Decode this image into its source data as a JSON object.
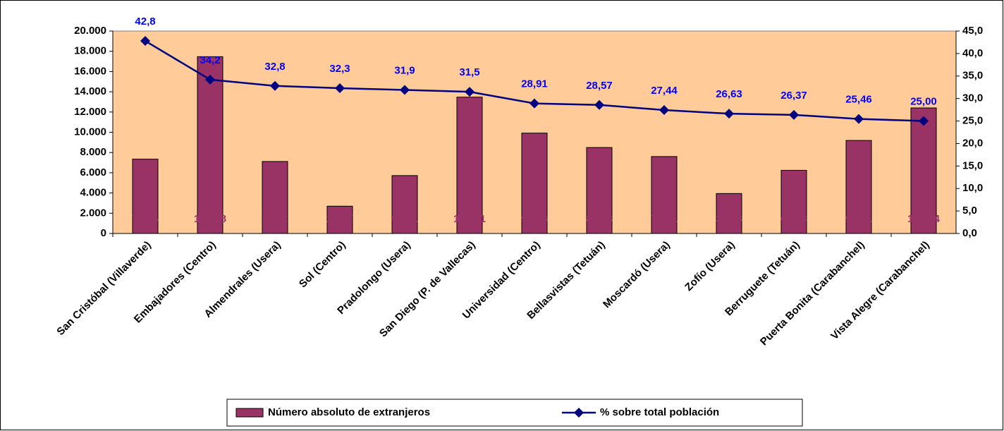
{
  "chart_data": {
    "type": "bar",
    "categories": [
      "San Cristóbal (Villaverde)",
      "Embajadores (Centro)",
      "Almendrales (Usera)",
      "Sol (Centro)",
      "Pradolongo (Usera)",
      "San Diego (P. de Vallecas)",
      "Universidad (Centro)",
      "Bellasvistas (Tetuán)",
      "Moscardó (Usera)",
      "Zofío (Usera)",
      "Berruguete (Tetuán)",
      "Puerta Bonita (Carabanchel)",
      "Vista Alegre (Carabanchel)"
    ],
    "series": [
      {
        "name": "Número absoluto de extranjeros",
        "type": "bar",
        "color": "#993366",
        "values": [
          7346,
          17468,
          7112,
          2697,
          5721,
          13471,
          9918,
          8493,
          7601,
          3948,
          6243,
          9191,
          12404
        ],
        "value_labels": [
          "7.346",
          "17.468",
          "7.112",
          "2.697",
          "5.721",
          "13.471",
          "9.918",
          "8.493",
          "7.601",
          "3.948",
          "6.243",
          "9.191",
          "12.404"
        ]
      },
      {
        "name": "% sobre total población",
        "type": "line",
        "axis": "y2",
        "color": "#000080",
        "values": [
          42.8,
          34.2,
          32.8,
          32.3,
          31.9,
          31.5,
          28.91,
          28.57,
          27.44,
          26.63,
          26.37,
          25.46,
          25.0
        ],
        "value_labels": [
          "42,8",
          "34,2",
          "32,8",
          "32,3",
          "31,9",
          "31,5",
          "28,91",
          "28,57",
          "27,44",
          "26,63",
          "26,37",
          "25,46",
          "25,00"
        ]
      }
    ],
    "ylim": [
      0,
      20000
    ],
    "yticks": [
      0,
      {
        "value": 2000,
        "label": "2.000"
      },
      {
        "value": 4000,
        "label": "4.000"
      },
      {
        "value": 6000,
        "label": "6.000"
      },
      {
        "value": 8000,
        "label": "8.000"
      },
      {
        "value": 10000,
        "label": "10.000"
      },
      {
        "value": 12000,
        "label": "12.000"
      },
      {
        "value": 14000,
        "label": "14.000"
      },
      {
        "value": 16000,
        "label": "16.000"
      },
      {
        "value": 18000,
        "label": "18.000"
      },
      {
        "value": 20000,
        "label": "20.000"
      }
    ],
    "y2lim": [
      0,
      45
    ],
    "y2ticks": [
      {
        "value": 0,
        "label": "0,0"
      },
      {
        "value": 5,
        "label": "5,0"
      },
      {
        "value": 10,
        "label": "10,0"
      },
      {
        "value": 15,
        "label": "15,0"
      },
      {
        "value": 20,
        "label": "20,0"
      },
      {
        "value": 25,
        "label": "25,0"
      },
      {
        "value": 30,
        "label": "30,0"
      },
      {
        "value": 35,
        "label": "35,0"
      },
      {
        "value": 40,
        "label": "40,0"
      },
      {
        "value": 45,
        "label": "45,0"
      }
    ],
    "legend": "bottom",
    "plot_background": "#FFCC99"
  }
}
